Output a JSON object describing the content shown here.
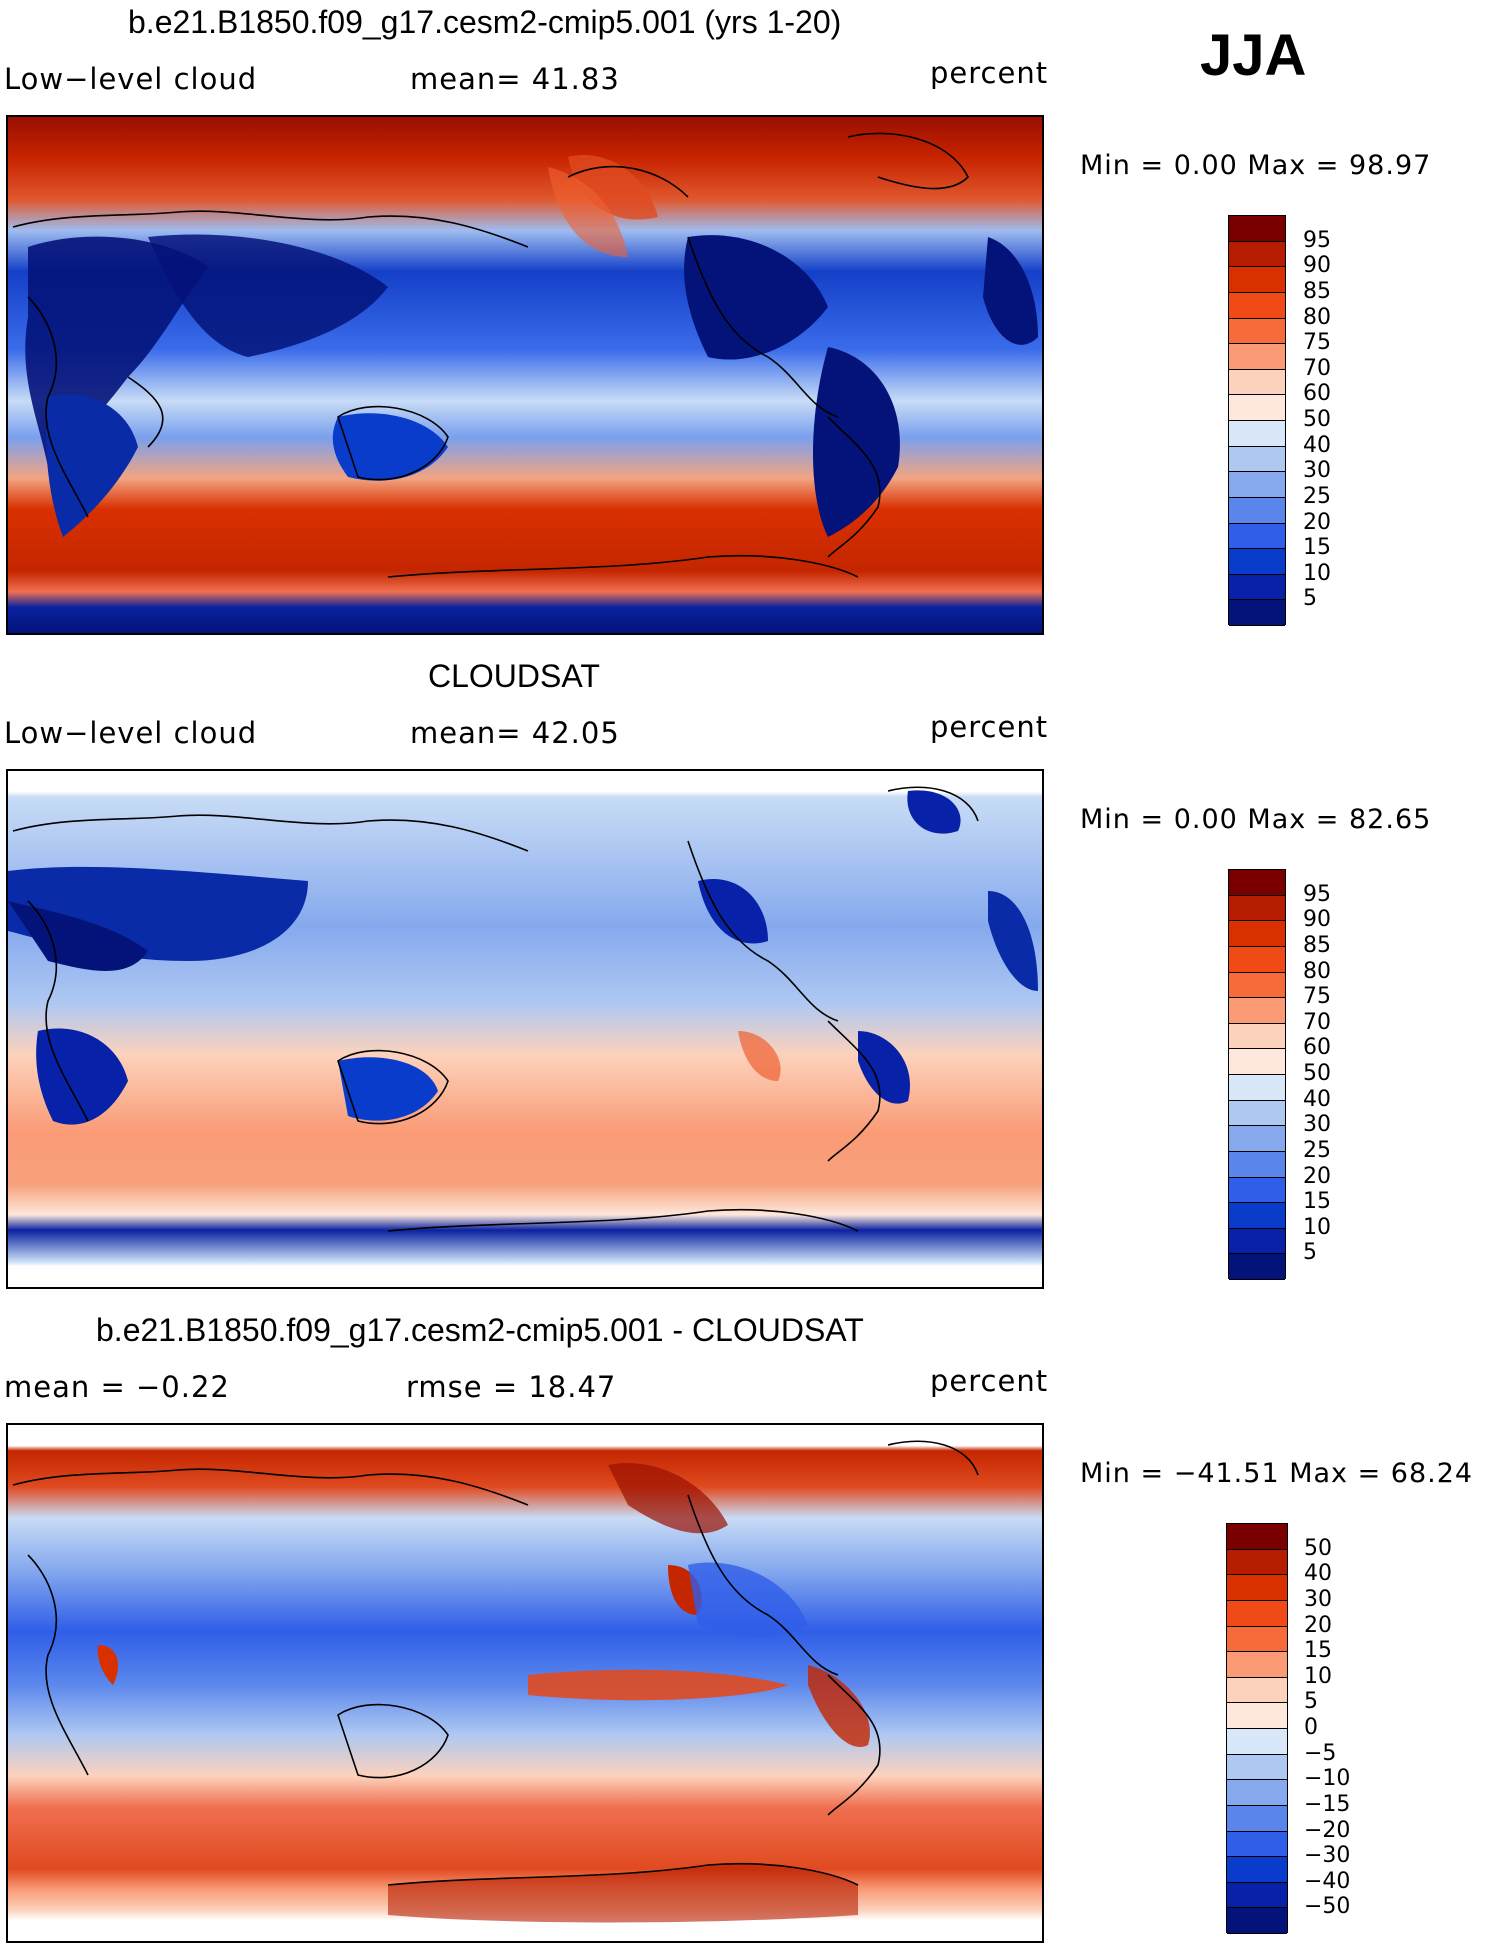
{
  "season": "JJA",
  "unit": "percent",
  "panels": [
    {
      "title": "b.e21.B1850.f09_g17.cesm2-cmip5.001 (yrs 1-20)",
      "left_label": "Low−level cloud",
      "mid_label": "mean=   41.83",
      "right_label": "percent",
      "minmax": "Min =    0.00 Max =   98.97",
      "colorbar": {
        "labels": [
          "95",
          "90",
          "85",
          "80",
          "75",
          "70",
          "60",
          "50",
          "40",
          "30",
          "25",
          "20",
          "15",
          "10",
          "5"
        ],
        "colors": [
          "#7a0000",
          "#b51c00",
          "#d93000",
          "#f04a17",
          "#f76a3a",
          "#fa9b76",
          "#fcd2bc",
          "#fde8db",
          "#d8e8f8",
          "#aec8f2",
          "#86a9ee",
          "#5a86ec",
          "#2f5ee8",
          "#0a3ccc",
          "#0722a8",
          "#03137a"
        ]
      }
    },
    {
      "title": "CLOUDSAT",
      "left_label": "Low−level cloud",
      "mid_label": "mean=   42.05",
      "right_label": "percent",
      "minmax": "Min =    0.00 Max =   82.65",
      "colorbar": {
        "labels": [
          "95",
          "90",
          "85",
          "80",
          "75",
          "70",
          "60",
          "50",
          "40",
          "30",
          "25",
          "20",
          "15",
          "10",
          "5"
        ],
        "colors": [
          "#7a0000",
          "#b51c00",
          "#d93000",
          "#f04a17",
          "#f76a3a",
          "#fa9b76",
          "#fcd2bc",
          "#fde8db",
          "#d8e8f8",
          "#aec8f2",
          "#86a9ee",
          "#5a86ec",
          "#2f5ee8",
          "#0a3ccc",
          "#0722a8",
          "#03137a"
        ]
      }
    },
    {
      "title": "b.e21.B1850.f09_g17.cesm2-cmip5.001 - CLOUDSAT",
      "left_label": "mean =   −0.22",
      "mid_label": "rmse =   18.47",
      "right_label": "percent",
      "minmax": "Min = −41.51 Max =   68.24",
      "colorbar": {
        "labels": [
          "50",
          "40",
          "30",
          "20",
          "15",
          "10",
          "5",
          "0",
          "−5",
          "−10",
          "−15",
          "−20",
          "−30",
          "−40",
          "−50"
        ],
        "colors": [
          "#7a0000",
          "#b51c00",
          "#d93000",
          "#f04a17",
          "#f76a3a",
          "#fa9b76",
          "#fcd2bc",
          "#fde8db",
          "#d8e8f8",
          "#aec8f2",
          "#86a9ee",
          "#5a86ec",
          "#2f5ee8",
          "#0a3ccc",
          "#0722a8",
          "#03137a"
        ]
      }
    }
  ]
}
